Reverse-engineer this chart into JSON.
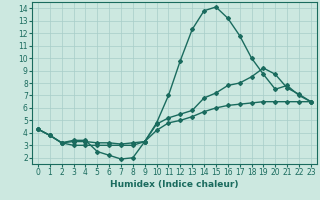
{
  "xlabel": "Humidex (Indice chaleur)",
  "xlim": [
    -0.5,
    23.5
  ],
  "ylim": [
    1.5,
    14.5
  ],
  "xticks": [
    0,
    1,
    2,
    3,
    4,
    5,
    6,
    7,
    8,
    9,
    10,
    11,
    12,
    13,
    14,
    15,
    16,
    17,
    18,
    19,
    20,
    21,
    22,
    23
  ],
  "yticks": [
    2,
    3,
    4,
    5,
    6,
    7,
    8,
    9,
    10,
    11,
    12,
    13,
    14
  ],
  "bg_color": "#cce8e0",
  "grid_color": "#a8cec8",
  "line_color": "#1a6b5e",
  "lines": [
    {
      "x": [
        0,
        1,
        2,
        3,
        4,
        5,
        6,
        7,
        8,
        9,
        10,
        11,
        12,
        13,
        14,
        15,
        16,
        17,
        18,
        19,
        20,
        21,
        22,
        23
      ],
      "y": [
        4.3,
        3.8,
        3.2,
        3.4,
        3.4,
        2.5,
        2.2,
        1.9,
        2.0,
        3.3,
        4.8,
        7.0,
        9.8,
        12.3,
        13.8,
        14.1,
        13.2,
        11.8,
        10.0,
        8.7,
        7.5,
        7.8,
        7.0,
        6.5
      ]
    },
    {
      "x": [
        0,
        1,
        2,
        3,
        4,
        5,
        6,
        7,
        8,
        9,
        10,
        11,
        12,
        13,
        14,
        15,
        16,
        17,
        18,
        19,
        20,
        21,
        22,
        23
      ],
      "y": [
        4.3,
        3.8,
        3.2,
        3.3,
        3.3,
        3.2,
        3.2,
        3.1,
        3.2,
        3.3,
        4.7,
        5.2,
        5.5,
        5.8,
        6.8,
        7.2,
        7.8,
        8.0,
        8.5,
        9.2,
        8.7,
        7.6,
        7.1,
        6.5
      ]
    },
    {
      "x": [
        0,
        1,
        2,
        3,
        4,
        5,
        6,
        7,
        8,
        9,
        10,
        11,
        12,
        13,
        14,
        15,
        16,
        17,
        18,
        19,
        20,
        21,
        22,
        23
      ],
      "y": [
        4.3,
        3.8,
        3.2,
        3.0,
        3.0,
        3.0,
        3.0,
        3.0,
        3.0,
        3.3,
        4.2,
        4.8,
        5.0,
        5.3,
        5.7,
        6.0,
        6.2,
        6.3,
        6.4,
        6.5,
        6.5,
        6.5,
        6.5,
        6.5
      ]
    }
  ],
  "marker": "D",
  "marker_size": 2.0,
  "line_width": 1.0,
  "tick_fontsize": 5.5,
  "label_fontsize": 6.5
}
